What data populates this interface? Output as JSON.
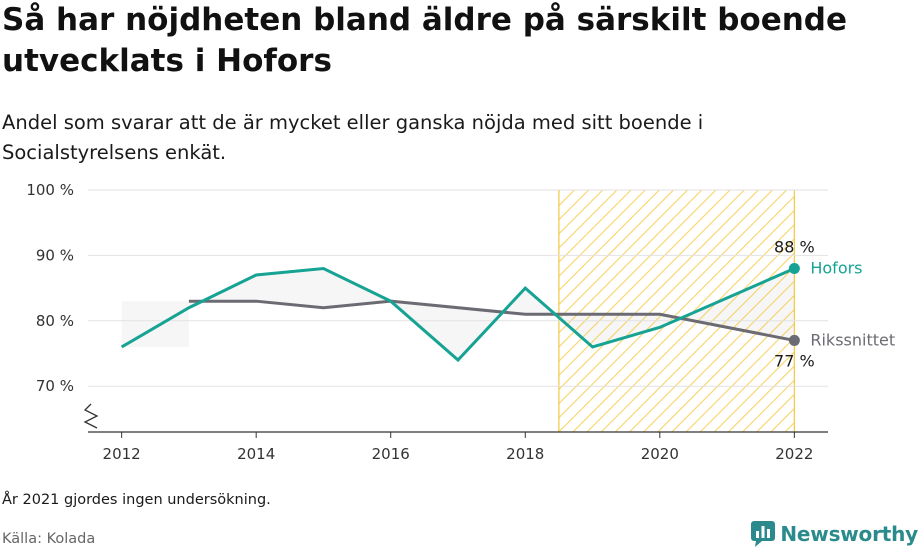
{
  "title": "Så har nöjdheten bland äldre på särskilt boende utvecklats i Hofors",
  "subtitle": "Andel som svarar att de är mycket eller ganska nöjda med sitt boende i Socialstyrelsens enkät.",
  "footnote": "År 2021 gjordes ingen undersökning.",
  "source": "Källa: Kolada",
  "brand": {
    "name": "Newsworthy",
    "icon": "newsworthy-logo-icon"
  },
  "colors": {
    "hofors": "#16a394",
    "riket": "#6b6b73",
    "highlight": "#f5c842",
    "grid": "#e2e2e2"
  },
  "chart_data": {
    "type": "line",
    "x_ticks": [
      "2012",
      "2014",
      "2016",
      "2018",
      "2020",
      "2022"
    ],
    "y_ticks": [
      "70 %",
      "80 %",
      "90 %",
      "100 %"
    ],
    "ylim": [
      63,
      100
    ],
    "xlim": [
      2011.5,
      2022.5
    ],
    "y_axis_break": true,
    "highlight_range": [
      2018.5,
      2022
    ],
    "series": [
      {
        "name": "Hofors",
        "x": [
          2012,
          2013,
          2014,
          2015,
          2016,
          2017,
          2018,
          2019,
          2020,
          2022
        ],
        "values": [
          76,
          82,
          87,
          88,
          83,
          74,
          85,
          76,
          79,
          88
        ],
        "end_label": "88 %"
      },
      {
        "name": "Rikssnittet",
        "x": [
          2013,
          2014,
          2015,
          2016,
          2018,
          2020,
          2022
        ],
        "values": [
          83,
          83,
          82,
          83,
          81,
          81,
          77
        ],
        "end_label": "77 %"
      }
    ],
    "grid": true,
    "legend": "end-of-line labels"
  }
}
